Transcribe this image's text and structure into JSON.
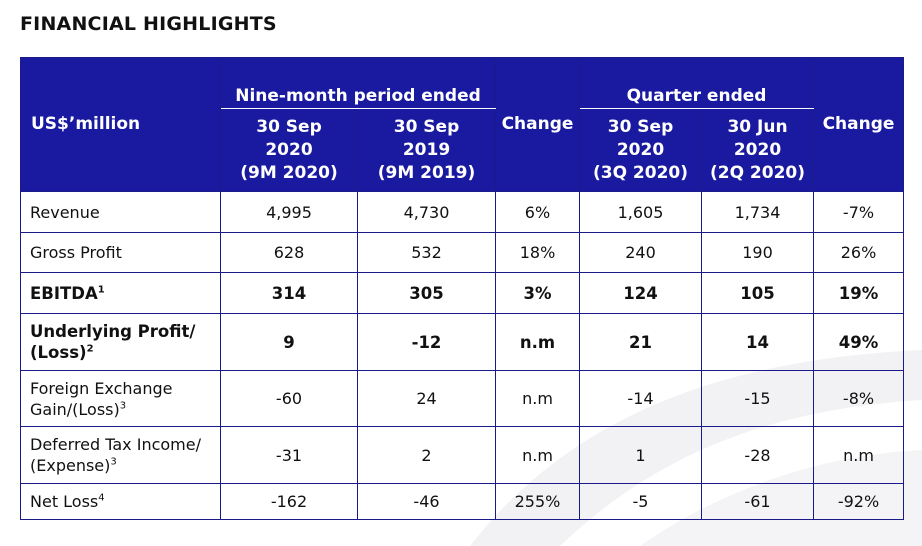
{
  "title": "FINANCIAL HIGHLIGHTS",
  "table": {
    "unit_label": "US$’million",
    "group_nine_month": "Nine-month period ended",
    "group_quarter": "Quarter ended",
    "change_label_1": "Change",
    "change_label_2": "Change",
    "columns": [
      {
        "line1": "30 Sep",
        "line2": "2020",
        "line3": "(9M 2020)"
      },
      {
        "line1": "30 Sep",
        "line2": "2019",
        "line3": "(9M 2019)"
      },
      {
        "line1": "30 Sep",
        "line2": "2020",
        "line3": "(3Q 2020)"
      },
      {
        "line1": "30 Jun",
        "line2": "2020",
        "line3": "(2Q 2020)"
      }
    ],
    "rows": [
      {
        "label1": "Revenue",
        "label2": "",
        "sup": "",
        "bold": false,
        "values": [
          "4,995",
          "4,730",
          "6%",
          "1,605",
          "1,734",
          "-7%"
        ]
      },
      {
        "label1": "Gross Profit",
        "label2": "",
        "sup": "",
        "bold": false,
        "values": [
          "628",
          "532",
          "18%",
          "240",
          "190",
          "26%"
        ]
      },
      {
        "label1": "EBITDA",
        "label2": "",
        "sup": "1",
        "bold": true,
        "values": [
          "314",
          "305",
          "3%",
          "124",
          "105",
          "19%"
        ]
      },
      {
        "label1": "Underlying Profit/",
        "label2": "(Loss)",
        "sup": "2",
        "bold": true,
        "values": [
          "9",
          "-12",
          "n.m",
          "21",
          "14",
          "49%"
        ]
      },
      {
        "label1": "Foreign Exchange",
        "label2": "Gain/(Loss)",
        "sup": "3",
        "bold": false,
        "values": [
          "-60",
          "24",
          "n.m",
          "-14",
          "-15",
          "-8%"
        ]
      },
      {
        "label1": "Deferred Tax Income/",
        "label2": "(Expense)",
        "sup": "3",
        "bold": false,
        "values": [
          "-31",
          "2",
          "n.m",
          "1",
          "-28",
          "n.m"
        ]
      },
      {
        "label1": "Net Loss",
        "label2": "",
        "sup": "4",
        "bold": false,
        "values": [
          "-162",
          "-46",
          "255%",
          "-5",
          "-61",
          "-92%"
        ]
      }
    ]
  }
}
